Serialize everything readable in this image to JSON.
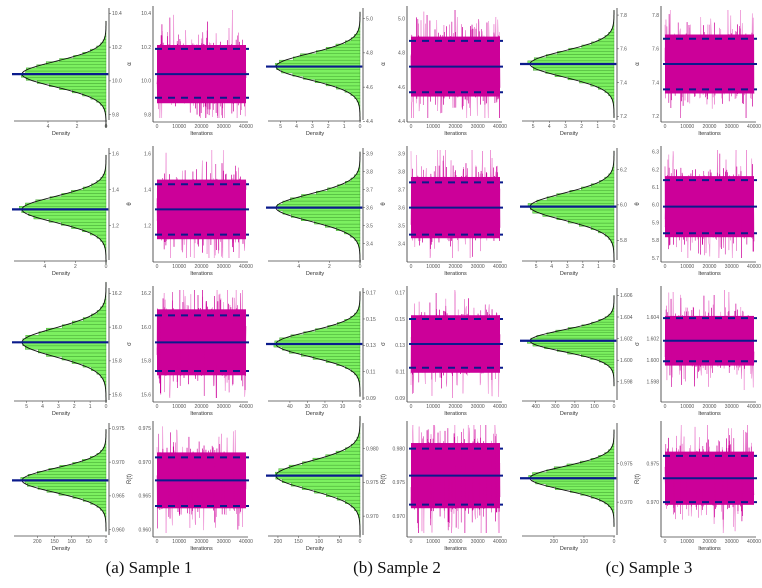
{
  "captions": [
    "(a) Sample 1",
    "(b) Sample 2",
    "(c) Sample 3"
  ],
  "colors": {
    "hist_fill": "#7CF060",
    "hist_stripe": "#3a9a2a",
    "trace": "#CC0099",
    "trace_light": "#E870C8",
    "estimate_line": "#0A1A8C",
    "density_curve": "#111111"
  },
  "chart_data": [
    {
      "type": "histogram+trace",
      "sample": "Sample 1",
      "param": "α",
      "mean": 10.04,
      "ci": [
        9.9,
        10.19
      ],
      "sd": 0.075,
      "ylim": [
        9.78,
        10.42
      ],
      "yticks": [
        9.8,
        10.0,
        10.2,
        10.4
      ],
      "density_max": 5.8,
      "density_ticks": [
        0,
        2,
        4
      ],
      "density_label": "Density",
      "xlabel": "Iterations",
      "xticks": [
        0,
        10000,
        20000,
        30000,
        40000
      ],
      "iterations": 40000
    },
    {
      "type": "histogram+trace",
      "sample": "Sample 1",
      "param": "θ",
      "mean": 1.29,
      "ci": [
        1.15,
        1.43
      ],
      "sd": 0.072,
      "ylim": [
        1.02,
        1.62
      ],
      "yticks": [
        1.2,
        1.4,
        1.6
      ],
      "density_max": 5.5,
      "density_ticks": [
        0,
        2,
        4
      ],
      "density_label": "Density",
      "xlabel": "Iterations",
      "xticks": [
        0,
        10000,
        20000,
        30000,
        40000
      ],
      "iterations": 40000
    },
    {
      "type": "histogram+trace",
      "sample": "Sample 1",
      "param": "σ",
      "mean": 15.91,
      "ci": [
        15.74,
        16.07
      ],
      "sd": 0.085,
      "ylim": [
        15.58,
        16.22
      ],
      "yticks": [
        15.6,
        15.8,
        16.0,
        16.2
      ],
      "density_max": 5.3,
      "density_ticks": [
        0,
        1,
        2,
        3,
        4,
        5
      ],
      "density_label": "Density",
      "xlabel": "Iterations",
      "xticks": [
        0,
        10000,
        20000,
        30000,
        40000
      ],
      "iterations": 40000
    },
    {
      "type": "histogram+trace",
      "sample": "Sample 1",
      "param": "R(t)",
      "mean": 0.9673,
      "ci": [
        0.9635,
        0.9707
      ],
      "sd": 0.0018,
      "ylim": [
        0.9595,
        0.9755
      ],
      "yticks": [
        0.96,
        0.965,
        0.97,
        0.975
      ],
      "density_max": 245,
      "density_ticks": [
        0,
        50,
        100,
        150,
        200
      ],
      "density_label": "Density",
      "xlabel": "Iterations",
      "xticks": [
        0,
        10000,
        20000,
        30000,
        40000
      ],
      "iterations": 40000
    },
    {
      "type": "histogram+trace",
      "sample": "Sample 2",
      "param": "α",
      "mean": 4.72,
      "ci": [
        4.57,
        4.87
      ],
      "sd": 0.076,
      "ylim": [
        4.42,
        5.05
      ],
      "yticks": [
        4.4,
        4.6,
        4.8,
        5.0
      ],
      "density_max": 5.3,
      "density_ticks": [
        0,
        1,
        2,
        3,
        4,
        5
      ],
      "density_label": "Density",
      "xlabel": "Iterations",
      "xticks": [
        0,
        10000,
        20000,
        30000,
        40000
      ],
      "iterations": 40000
    },
    {
      "type": "histogram+trace",
      "sample": "Sample 2",
      "param": "θ",
      "mean": 3.6,
      "ci": [
        3.45,
        3.74
      ],
      "sd": 0.074,
      "ylim": [
        3.32,
        3.92
      ],
      "yticks": [
        3.4,
        3.5,
        3.6,
        3.7,
        3.8,
        3.9
      ],
      "density_max": 5.5,
      "density_ticks": [
        0,
        2,
        4
      ],
      "density_label": "Density",
      "xlabel": "Iterations",
      "xticks": [
        0,
        10000,
        20000,
        30000,
        40000
      ],
      "iterations": 40000
    },
    {
      "type": "histogram+trace",
      "sample": "Sample 2",
      "param": "σ",
      "mean": 0.131,
      "ci": [
        0.113,
        0.15
      ],
      "sd": 0.0095,
      "ylim": [
        0.09,
        0.172
      ],
      "yticks": [
        0.09,
        0.11,
        0.13,
        0.15,
        0.17
      ],
      "density_max": 48,
      "density_ticks": [
        0,
        10,
        20,
        30,
        40
      ],
      "density_label": "Density",
      "xlabel": "Iterations",
      "xticks": [
        0,
        10000,
        20000,
        30000,
        40000
      ],
      "iterations": 40000
    },
    {
      "type": "histogram+trace",
      "sample": "Sample 2",
      "param": "R(t)",
      "mean": 0.976,
      "ci": [
        0.9717,
        0.98
      ],
      "sd": 0.0021,
      "ylim": [
        0.9675,
        0.9835
      ],
      "yticks": [
        0.97,
        0.975,
        0.98
      ],
      "density_max": 205,
      "density_ticks": [
        0,
        50,
        100,
        150,
        200
      ],
      "density_label": "Density",
      "xlabel": "Iterations",
      "xticks": [
        0,
        10000,
        20000,
        30000,
        40000
      ],
      "iterations": 40000
    },
    {
      "type": "histogram+trace",
      "sample": "Sample 3",
      "param": "α",
      "mean": 7.51,
      "ci": [
        7.36,
        7.66
      ],
      "sd": 0.076,
      "ylim": [
        7.19,
        7.83
      ],
      "yticks": [
        7.2,
        7.4,
        7.6,
        7.8
      ],
      "density_max": 5.2,
      "density_ticks": [
        0,
        1,
        2,
        3,
        4,
        5
      ],
      "density_label": "Density",
      "xlabel": "Iterations",
      "xticks": [
        0,
        10000,
        20000,
        30000,
        40000
      ],
      "iterations": 40000
    },
    {
      "type": "histogram+trace",
      "sample": "Sample 3",
      "param": "θ",
      "mean": 5.99,
      "ci": [
        5.84,
        6.14
      ],
      "sd": 0.075,
      "ylim": [
        5.7,
        6.31
      ],
      "yticks": [
        5.7,
        5.8,
        5.9,
        6.0,
        6.1,
        6.2,
        6.3
      ],
      "hist_yticks": [
        5.8,
        6.0,
        6.2
      ],
      "density_max": 5.4,
      "density_ticks": [
        0,
        1,
        2,
        3,
        4,
        5
      ],
      "density_label": "Density",
      "xlabel": "Iterations",
      "xticks": [
        0,
        10000,
        20000,
        30000,
        40000
      ],
      "iterations": 40000
    },
    {
      "type": "histogram+trace",
      "sample": "Sample 3",
      "param": "σ",
      "mean": 1.6018,
      "ci": [
        1.5999,
        1.6039
      ],
      "sd": 0.001,
      "ylim": [
        1.5965,
        1.6065
      ],
      "yticks": [
        1.598,
        1.6,
        1.602,
        1.604
      ],
      "hist_yticks": [
        1.598,
        1.6,
        1.602,
        1.604,
        1.606
      ],
      "density_max": 430,
      "density_ticks": [
        0,
        100,
        200,
        300,
        400
      ],
      "density_label": "Density",
      "xlabel": "Iterations",
      "xticks": [
        0,
        10000,
        20000,
        30000,
        40000
      ],
      "iterations": 40000
    },
    {
      "type": "histogram+trace",
      "sample": "Sample 3",
      "param": "R(t)",
      "mean": 0.9731,
      "ci": [
        0.97,
        0.976
      ],
      "sd": 0.0015,
      "ylim": [
        0.966,
        0.98
      ],
      "yticks": [
        0.97,
        0.975
      ],
      "density_max": 280,
      "density_ticks": [
        0,
        100,
        200
      ],
      "density_label": "Density",
      "xlabel": "Iterations",
      "xticks": [
        0,
        10000,
        20000,
        30000,
        40000
      ],
      "iterations": 40000
    }
  ]
}
